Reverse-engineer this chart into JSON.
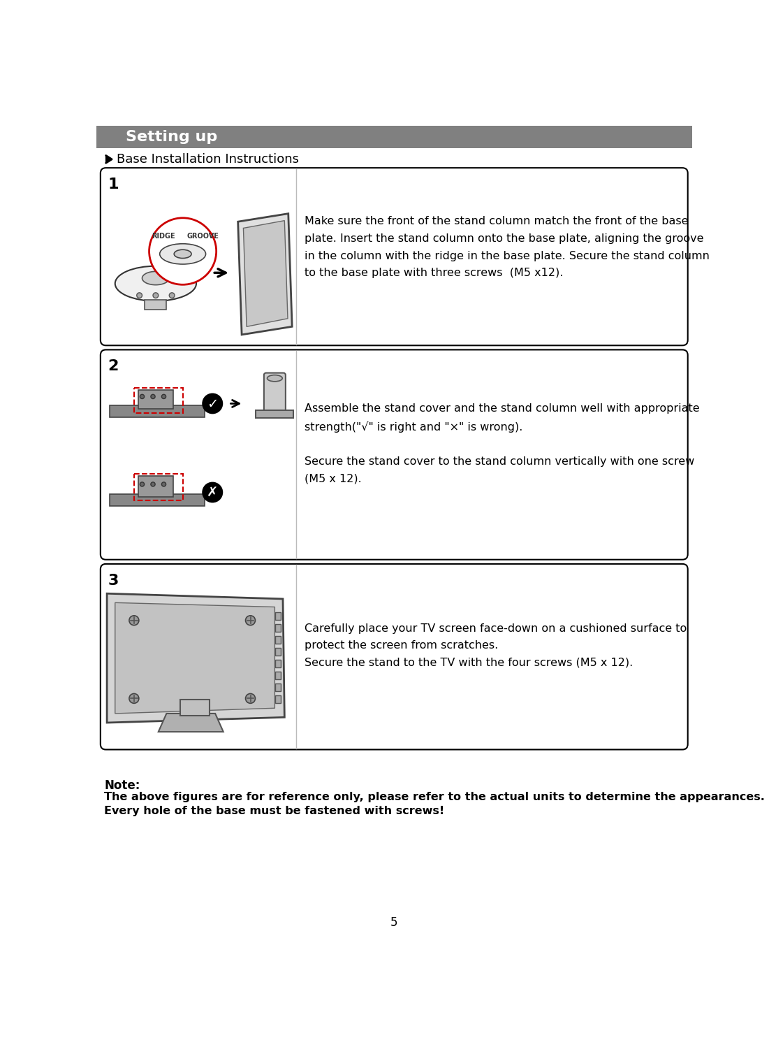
{
  "title": "Setting up",
  "title_bg": "#808080",
  "title_color": "#ffffff",
  "subtitle": "Base Installation Instructions",
  "page_number": "5",
  "bg_color": "#ffffff",
  "step1_num": "1",
  "step1_text": "Make sure the front of the stand column match the front of the base\nplate. Insert the stand column onto the base plate, aligning the groove\nin the column with the ridge in the base plate. Secure the stand column\nto the base plate with three screws  (M5 x12).",
  "step2_num": "2",
  "step2_text": "Assemble the stand cover and the stand column well with appropriate\nstrength(\"√\" is right and \"×\" is wrong).\n\nSecure the stand cover to the stand column vertically with one screw\n(M5 x 12).",
  "step3_num": "3",
  "step3_text": "Carefully place your TV screen face-down on a cushioned surface to\nprotect the screen from scratches.\nSecure the stand to the TV with the four screws (M5 x 12).",
  "note_title": "Note:",
  "note_text1": "The above figures are for reference only, please refer to the actual units to determine the appearances.",
  "note_text2": "Every hole of the ",
  "note_text2_bold": "base",
  "note_text2_end": " must be fastened with screws!",
  "box_border": "#000000",
  "text_color": "#000000",
  "red_color": "#cc0000"
}
